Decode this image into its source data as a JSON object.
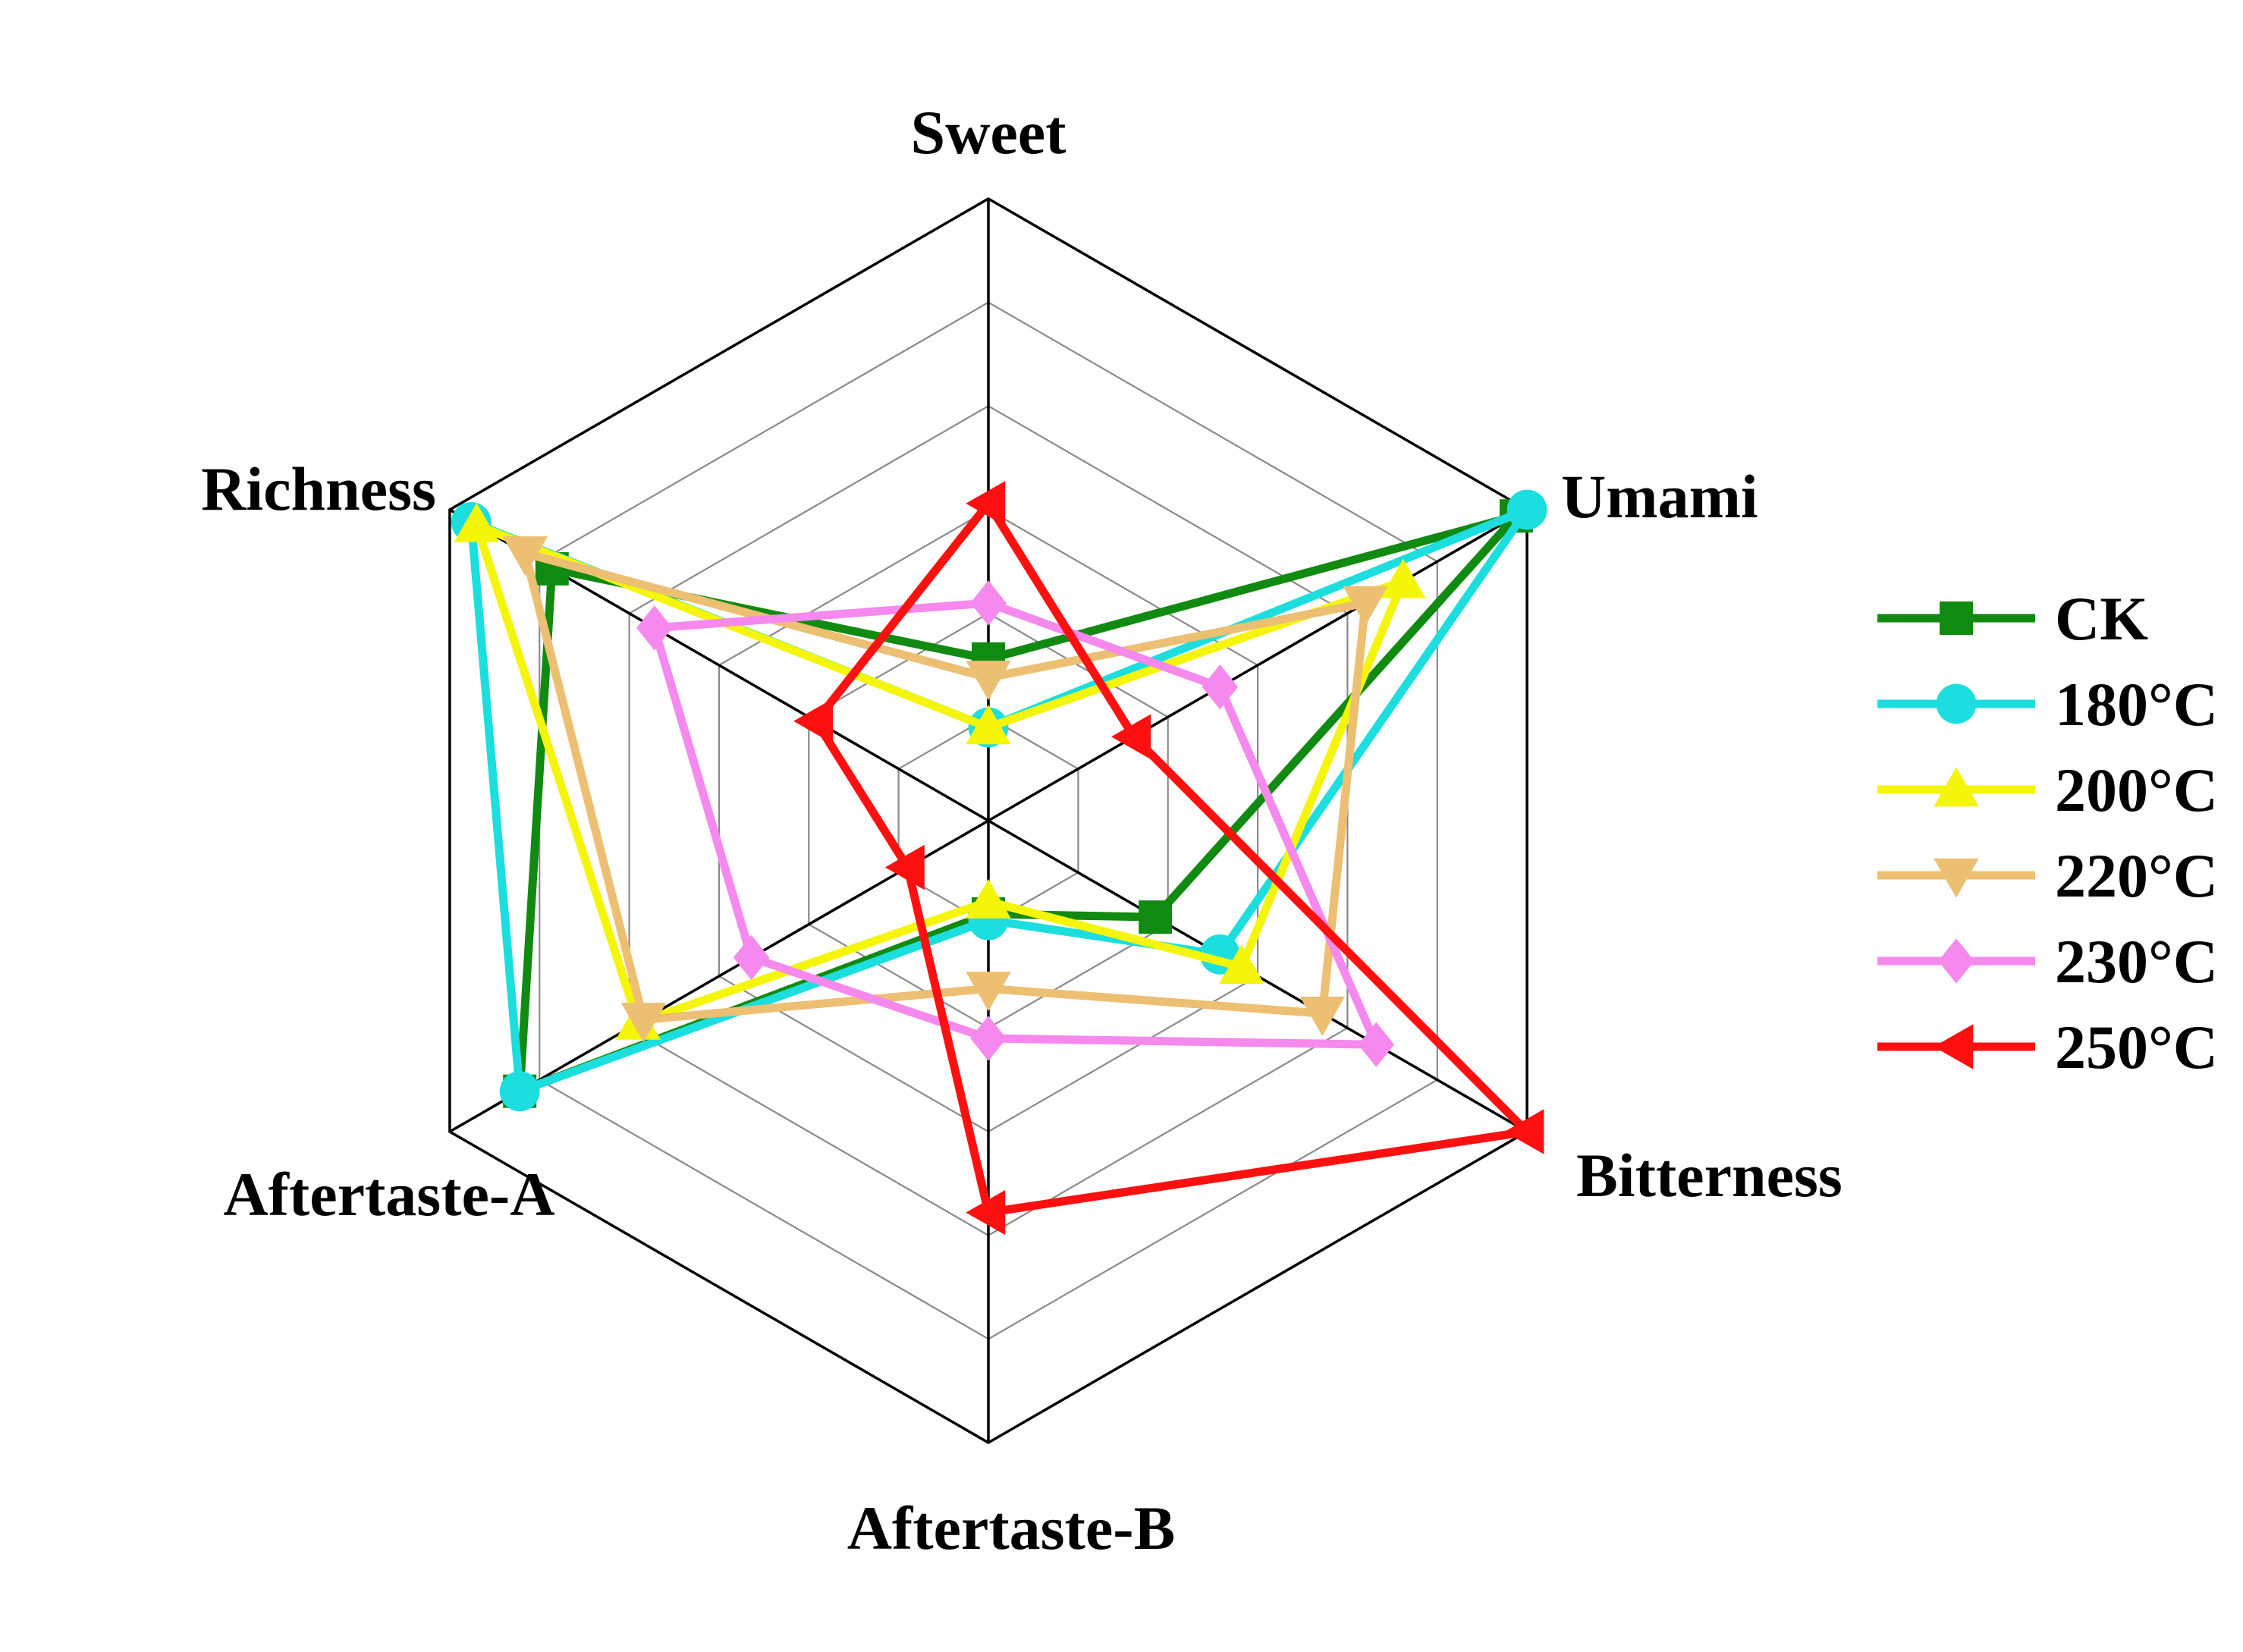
{
  "chart_data": {
    "type": "radar",
    "axes": [
      "Sweet",
      "Umami",
      "Bitterness",
      "Aftertaste-B",
      "Aftertaste-A",
      "Richness"
    ],
    "rmax": 1.0,
    "grid_levels": 6,
    "legend_position": "right",
    "series": [
      {
        "name": "CK",
        "color": "#118a11",
        "marker": "square",
        "values": [
          0.26,
          0.98,
          0.31,
          0.15,
          0.87,
          0.81
        ]
      },
      {
        "name": "180°C",
        "color": "#1cdede",
        "marker": "circle",
        "values": [
          0.15,
          1.0,
          0.43,
          0.16,
          0.87,
          0.96
        ]
      },
      {
        "name": "200°C",
        "color": "#f5f50a",
        "marker": "triangle-up",
        "values": [
          0.15,
          0.77,
          0.47,
          0.13,
          0.65,
          0.95
        ]
      },
      {
        "name": "220°C",
        "color": "#ecbf73",
        "marker": "triangle-down",
        "values": [
          0.23,
          0.7,
          0.62,
          0.27,
          0.64,
          0.86
        ]
      },
      {
        "name": "230°C",
        "color": "#f689ee",
        "marker": "diamond",
        "values": [
          0.35,
          0.43,
          0.72,
          0.35,
          0.44,
          0.62
        ]
      },
      {
        "name": "250°C",
        "color": "#ff1010",
        "marker": "triangle-left",
        "values": [
          0.51,
          0.27,
          1.0,
          0.63,
          0.15,
          0.32
        ]
      }
    ]
  }
}
